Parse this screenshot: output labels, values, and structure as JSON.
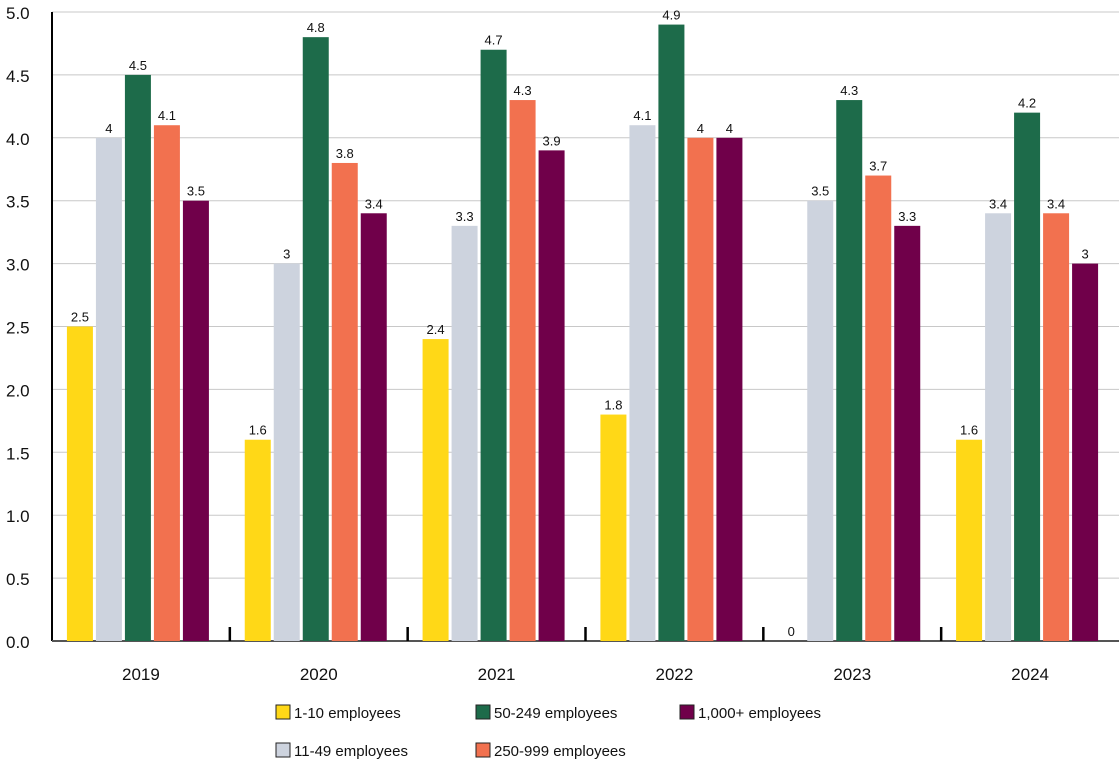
{
  "chart_data": {
    "type": "bar",
    "categories": [
      "2019",
      "2020",
      "2021",
      "2022",
      "2023",
      "2024"
    ],
    "ylim": [
      0,
      5.0
    ],
    "yticks": [
      "0.0",
      "0.5",
      "1.0",
      "1.5",
      "2.0",
      "2.5",
      "3.0",
      "3.5",
      "4.0",
      "4.5",
      "5.0"
    ],
    "grid": true,
    "legend_position": "bottom",
    "series": [
      {
        "name": "1-10 employees",
        "color": "#FFD817",
        "values": [
          2.5,
          1.6,
          2.4,
          1.8,
          0,
          1.6
        ],
        "labels": [
          "2.5",
          "1.6",
          "2.4",
          "1.8",
          "0",
          "1.6"
        ]
      },
      {
        "name": "11-49 employees",
        "color": "#CDD3DE",
        "values": [
          4.0,
          3.0,
          3.3,
          4.1,
          3.5,
          3.4
        ],
        "labels": [
          "4",
          "3",
          "3.3",
          "4.1",
          "3.5",
          "3.4"
        ]
      },
      {
        "name": "50-249 employees",
        "color": "#1D6B4A",
        "values": [
          4.5,
          4.8,
          4.7,
          4.9,
          4.3,
          4.2
        ],
        "labels": [
          "4.5",
          "4.8",
          "4.7",
          "4.9",
          "4.3",
          "4.2"
        ]
      },
      {
        "name": "250-999 employees",
        "color": "#F2714F",
        "values": [
          4.1,
          3.8,
          4.3,
          4.0,
          3.7,
          3.4
        ],
        "labels": [
          "4.1",
          "3.8",
          "4.3",
          "4",
          "3.7",
          "3.4"
        ]
      },
      {
        "name": "1,000+ employees",
        "color": "#70004A",
        "values": [
          3.5,
          3.4,
          3.9,
          4.0,
          3.3,
          3.0
        ],
        "labels": [
          "3.5",
          "3.4",
          "3.9",
          "4",
          "3.3",
          "3"
        ]
      }
    ]
  }
}
